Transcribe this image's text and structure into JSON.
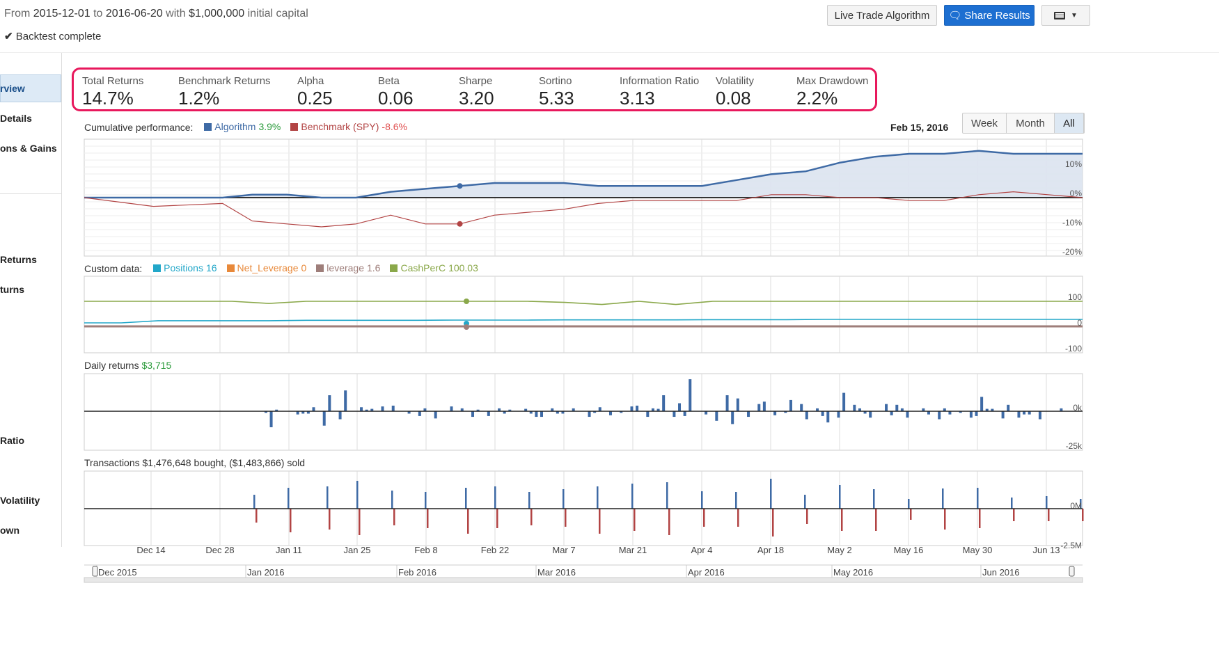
{
  "header": {
    "from_label": "From",
    "start_date": "2015-12-01",
    "to_label": "to",
    "end_date": "2016-06-20",
    "with_label": "with",
    "capital": "$1,000,000",
    "capital_suffix": "initial capital",
    "status": "Backtest complete",
    "live_trade_label": "Live Trade Algorithm",
    "share_label": "Share Results"
  },
  "sidebar": {
    "items": [
      "rview",
      "Details",
      "ons & Gains",
      "Returns",
      "turns",
      "Ratio",
      "Volatility",
      "own"
    ]
  },
  "metrics": [
    {
      "label": "Total Returns",
      "value": "14.7%"
    },
    {
      "label": "Benchmark Returns",
      "value": "1.2%"
    },
    {
      "label": "Alpha",
      "value": "0.25"
    },
    {
      "label": "Beta",
      "value": "0.06"
    },
    {
      "label": "Sharpe",
      "value": "3.20"
    },
    {
      "label": "Sortino",
      "value": "5.33"
    },
    {
      "label": "Information Ratio",
      "value": "3.13"
    },
    {
      "label": "Volatility",
      "value": "0.08"
    },
    {
      "label": "Max Drawdown",
      "value": "2.2%"
    }
  ],
  "colors": {
    "algorithm": "#3e6aa5",
    "benchmark": "#b24444",
    "positions": "#22a7c9",
    "net_leverage": "#e8893a",
    "leverage": "#9e7e7a",
    "cashperc": "#8aa84a",
    "highlight_box": "#e8185c",
    "primary_button": "#1d6fd1",
    "positive": "#2a9a3a",
    "negative": "#e05050"
  },
  "performance": {
    "title": "Cumulative performance:",
    "hover_date": "Feb 15, 2016",
    "range_buttons": [
      "Week",
      "Month",
      "All"
    ],
    "selected_range": "All",
    "legend": [
      {
        "name": "Algorithm",
        "value": "3.9%",
        "value_color": "#2a9a3a"
      },
      {
        "name": "Benchmark (SPY)",
        "value": "-8.6%",
        "value_color": "#e05050"
      }
    ],
    "y_ticks": [
      "10%",
      "0%",
      "-10%",
      "-20%"
    ]
  },
  "custom": {
    "title": "Custom data:",
    "legend": [
      {
        "name": "Positions",
        "value": "16"
      },
      {
        "name": "Net_Leverage",
        "value": "0"
      },
      {
        "name": "leverage",
        "value": "1.6"
      },
      {
        "name": "CashPerC",
        "value": "100.03"
      }
    ],
    "y_ticks": [
      "100",
      "0",
      "-100"
    ]
  },
  "daily": {
    "title": "Daily returns",
    "value": "$3,715",
    "y_ticks": [
      "0k",
      "-25k"
    ]
  },
  "transactions": {
    "title": "Transactions $1,476,648 bought, ($1,483,866) sold",
    "y_ticks": [
      "0M",
      "-2.5M"
    ]
  },
  "x_axis": {
    "ticks": [
      "Dec 14",
      "Dec 28",
      "Jan 11",
      "Jan 25",
      "Feb 8",
      "Feb 22",
      "Mar 7",
      "Mar 21",
      "Apr 4",
      "Apr 18",
      "May 2",
      "May 16",
      "May 30",
      "Jun 13"
    ]
  },
  "navigator": {
    "months": [
      "Dec 2015",
      "Jan 2016",
      "Feb 2016",
      "Mar 2016",
      "Apr 2016",
      "May 2016",
      "Jun 2016"
    ]
  },
  "chart_data": [
    {
      "type": "line",
      "title": "Cumulative performance:",
      "y_unit": "%",
      "ylim": [
        -20,
        20
      ],
      "series": [
        {
          "name": "Algorithm",
          "x": [
            "2015-12-01",
            "2015-12-15",
            "2015-12-29",
            "2016-01-04",
            "2016-01-11",
            "2016-01-18",
            "2016-01-25",
            "2016-02-01",
            "2016-02-08",
            "2016-02-15",
            "2016-02-22",
            "2016-02-29",
            "2016-03-07",
            "2016-03-14",
            "2016-03-21",
            "2016-03-28",
            "2016-04-04",
            "2016-04-11",
            "2016-04-18",
            "2016-04-25",
            "2016-05-02",
            "2016-05-09",
            "2016-05-16",
            "2016-05-23",
            "2016-05-30",
            "2016-06-06",
            "2016-06-13",
            "2016-06-20"
          ],
          "values": [
            0,
            0,
            0,
            1,
            1,
            0,
            0,
            2,
            3,
            4,
            5,
            5,
            5,
            4,
            4,
            4,
            4,
            6,
            8,
            9,
            12,
            14,
            15,
            15,
            16,
            15,
            15,
            15
          ]
        },
        {
          "name": "Benchmark (SPY)",
          "x": [
            "2015-12-01",
            "2015-12-15",
            "2015-12-29",
            "2016-01-04",
            "2016-01-11",
            "2016-01-18",
            "2016-01-25",
            "2016-02-01",
            "2016-02-08",
            "2016-02-15",
            "2016-02-22",
            "2016-02-29",
            "2016-03-07",
            "2016-03-14",
            "2016-03-21",
            "2016-03-28",
            "2016-04-04",
            "2016-04-11",
            "2016-04-18",
            "2016-04-25",
            "2016-05-02",
            "2016-05-09",
            "2016-05-16",
            "2016-05-23",
            "2016-05-30",
            "2016-06-06",
            "2016-06-13",
            "2016-06-20"
          ],
          "values": [
            0,
            -3,
            -2,
            -8,
            -9,
            -10,
            -9,
            -6,
            -9,
            -9,
            -6,
            -5,
            -4,
            -2,
            -1,
            -1,
            -1,
            -1,
            1,
            1,
            0,
            0,
            -1,
            -1,
            1,
            2,
            1,
            0
          ]
        }
      ]
    },
    {
      "type": "line",
      "title": "Custom data:",
      "ylim": [
        -100,
        100
      ],
      "series": [
        {
          "name": "Positions",
          "values": [
            0,
            0,
            10,
            10,
            10,
            10,
            12,
            12,
            12,
            12,
            13,
            13,
            13,
            14,
            14,
            14,
            14,
            15,
            15,
            15,
            16,
            16,
            16,
            16,
            16,
            16,
            16,
            16
          ]
        },
        {
          "name": "Net_Leverage",
          "values": [
            0,
            0,
            0,
            0,
            0,
            0,
            0,
            0,
            0,
            0,
            0,
            0,
            0,
            0,
            0,
            0,
            0,
            0,
            0,
            0,
            0,
            0,
            0,
            0,
            0,
            0,
            0,
            0
          ]
        },
        {
          "name": "leverage",
          "values": [
            1.6,
            1.6,
            1.6,
            1.6,
            1.6,
            1.6,
            1.6,
            1.6,
            1.6,
            1.6,
            1.6,
            1.6,
            1.6,
            1.6,
            1.6,
            1.6,
            1.6,
            1.6,
            1.6,
            1.6,
            1.6,
            1.6,
            1.6,
            1.6,
            1.6,
            1.6,
            1.6,
            1.6
          ]
        },
        {
          "name": "CashPerC",
          "values": [
            100,
            100,
            100,
            100,
            100,
            90,
            100,
            100,
            100,
            100,
            100,
            100,
            100,
            95,
            85,
            100,
            85,
            100,
            100,
            100,
            100,
            100,
            100,
            100,
            100,
            100,
            100,
            100
          ]
        }
      ]
    },
    {
      "type": "bar",
      "title": "Daily returns",
      "ylim": [
        -25000,
        25000
      ],
      "values": [
        0,
        0,
        0,
        0,
        0,
        0,
        0,
        0,
        0,
        0,
        0,
        0,
        0,
        0,
        0,
        0,
        0,
        0,
        0,
        0,
        0,
        0,
        0,
        0,
        0,
        2000,
        3500,
        2500,
        -7000,
        0,
        4500,
        0,
        0,
        0,
        -1000,
        -10000,
        1000,
        0,
        0,
        0,
        -2000,
        -1500,
        -1500,
        2500,
        0,
        -9000,
        10000,
        0,
        -5000,
        13000,
        0,
        0,
        2500,
        1000,
        1500,
        0,
        3000,
        0,
        3500,
        0,
        0,
        -1500,
        0,
        -3000,
        1800,
        0,
        -4500,
        0,
        0,
        3000,
        0,
        1800,
        0,
        -3500,
        1000,
        0,
        -3000,
        0,
        1800,
        -1500,
        1000,
        0,
        0,
        1500,
        -1500,
        -3500,
        -3500,
        0,
        1800,
        -1500,
        -1500,
        0,
        1800,
        0,
        0,
        -3500,
        -1000,
        2500,
        0,
        -2500,
        0,
        -1000,
        0,
        3000,
        3500,
        0,
        -3500,
        1800,
        1500,
        10000,
        0,
        -3500,
        5000,
        -3000,
        20000,
        0,
        0,
        -2000,
        0,
        -6000,
        0,
        10000,
        -8000,
        8000,
        0,
        -3500,
        0,
        4500,
        6000,
        0,
        -2500,
        0,
        -1000,
        7000,
        0,
        4500,
        -5000,
        0,
        1800,
        -3000,
        -7000,
        0,
        -4000,
        11500,
        0,
        4000,
        1800,
        -1500,
        -4000,
        0,
        0,
        4500,
        -2500,
        4000,
        1800,
        -4000,
        0,
        0,
        1800,
        -2000,
        0,
        -5000,
        1800,
        -2000,
        0,
        -1000,
        0,
        -4000,
        -3000,
        9000,
        1500,
        1500,
        0,
        -4500,
        4000,
        0,
        -4000,
        -2000,
        -2000,
        0,
        -5000,
        0,
        0,
        0,
        1800
      ]
    },
    {
      "type": "bar",
      "title": "Transactions $1,476,648 bought, ($1,483,866) sold",
      "series": [
        {
          "name": "bought",
          "values": [
            0,
            0,
            0,
            0,
            0,
            0,
            0,
            0,
            0,
            1,
            1,
            1,
            1,
            1,
            1,
            1,
            1,
            1,
            1,
            1,
            1,
            1,
            1,
            1,
            1,
            1,
            1,
            1
          ]
        },
        {
          "name": "sold",
          "values": [
            0,
            0,
            0,
            0,
            0,
            0,
            0,
            0,
            0,
            -1,
            -1,
            -1,
            -1,
            -1,
            -1,
            -1,
            -1,
            -1,
            -1,
            -1,
            -1,
            -1,
            -1,
            -1,
            -1,
            -1,
            -1,
            -1
          ]
        }
      ]
    }
  ]
}
